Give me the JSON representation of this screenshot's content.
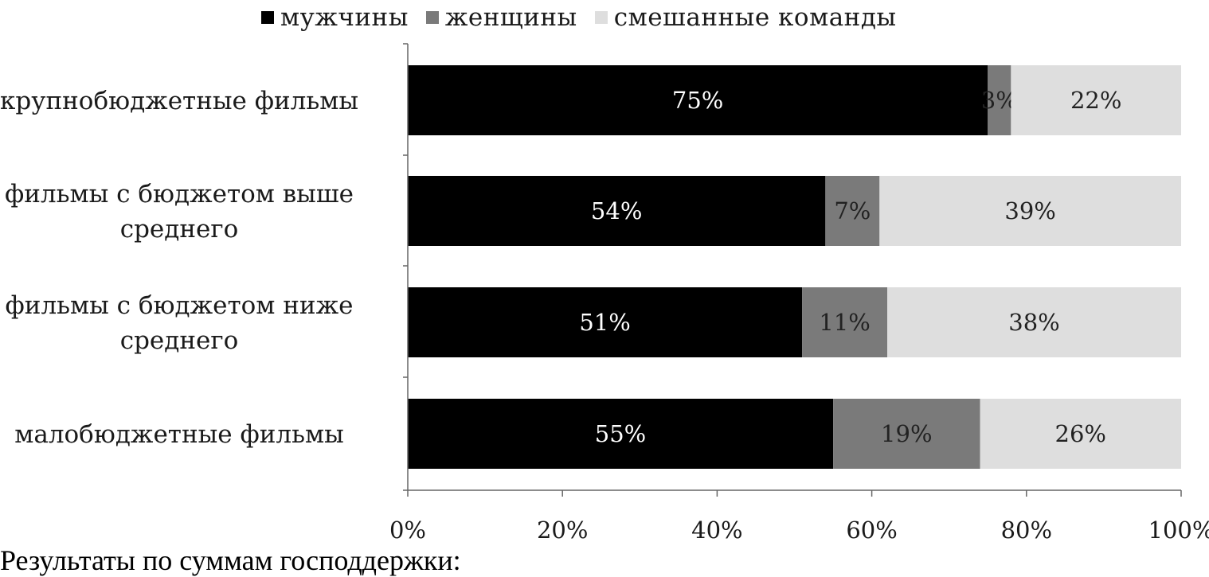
{
  "chart_data": {
    "type": "bar",
    "orientation": "horizontal",
    "stacked": true,
    "categories": [
      [
        "крупнобюджетные фильмы"
      ],
      [
        "фильмы с бюджетом выше",
        "среднего"
      ],
      [
        "фильмы с бюджетом ниже",
        "среднего"
      ],
      [
        "малобюджетные фильмы"
      ]
    ],
    "series": [
      {
        "name": "мужчины",
        "color": "#000000",
        "values": [
          75,
          54,
          51,
          55
        ],
        "labels": [
          "75%",
          "54%",
          "51%",
          "55%"
        ],
        "label_color": "#ffffff"
      },
      {
        "name": "женщины",
        "color": "#7a7a7a",
        "values": [
          3,
          7,
          11,
          19
        ],
        "labels": [
          "3%",
          "7%",
          "11%",
          "19%"
        ],
        "label_color": "#222222"
      },
      {
        "name": "смешанные команды",
        "color": "#dedede",
        "values": [
          22,
          39,
          38,
          26
        ],
        "labels": [
          "22%",
          "39%",
          "38%",
          "26%"
        ],
        "label_color": "#222222"
      }
    ],
    "xticks": [
      "0%",
      "20%",
      "40%",
      "60%",
      "80%",
      "100%"
    ],
    "xlim": [
      0,
      100
    ],
    "legend": "top",
    "grid": false
  },
  "caption": "Результаты по суммам господдержки:"
}
